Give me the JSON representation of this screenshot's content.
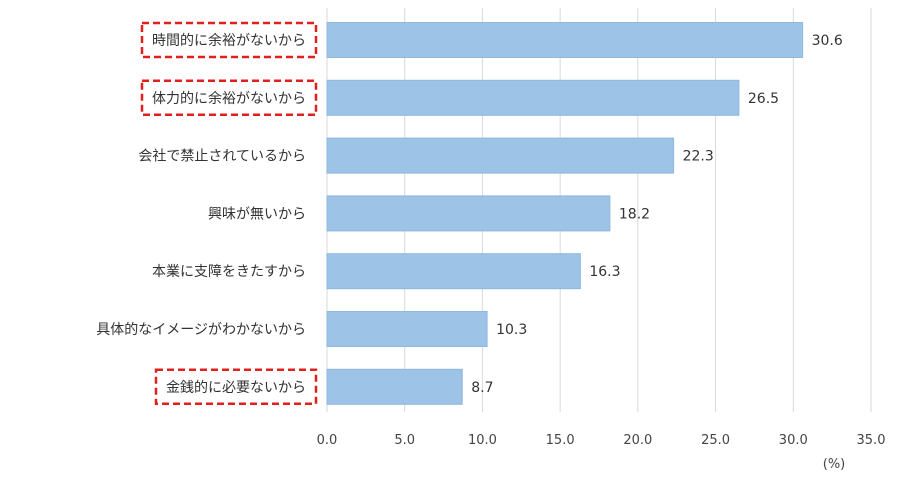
{
  "chart_data": {
    "type": "bar",
    "orientation": "horizontal",
    "categories": [
      "時間的に余裕がないから",
      "体力的に余裕がないから",
      "会社で禁止されているから",
      "興味が無いから",
      "本業に支障をきたすから",
      "具体的なイメージがわかないから",
      "金銭的に必要ないから"
    ],
    "values": [
      30.6,
      26.5,
      22.3,
      18.2,
      16.3,
      10.3,
      8.7
    ],
    "value_labels": [
      "30.6",
      "26.5",
      "22.3",
      "18.2",
      "16.3",
      "10.3",
      "8.7"
    ],
    "highlighted": [
      true,
      true,
      false,
      false,
      false,
      false,
      true
    ],
    "x_ticks": [
      "0.0",
      "5.0",
      "10.0",
      "15.0",
      "20.0",
      "25.0",
      "30.0",
      "35.0"
    ],
    "xlim": [
      0,
      35
    ],
    "x_unit": "(%)",
    "title": "",
    "xlabel": "",
    "ylabel": "",
    "grid": "vertical",
    "colors": {
      "bar_fill": "#9dc3e6",
      "bar_stroke": "#8fb8dd",
      "highlight_border": "#e0201c",
      "grid": "#d9d9d9"
    }
  }
}
